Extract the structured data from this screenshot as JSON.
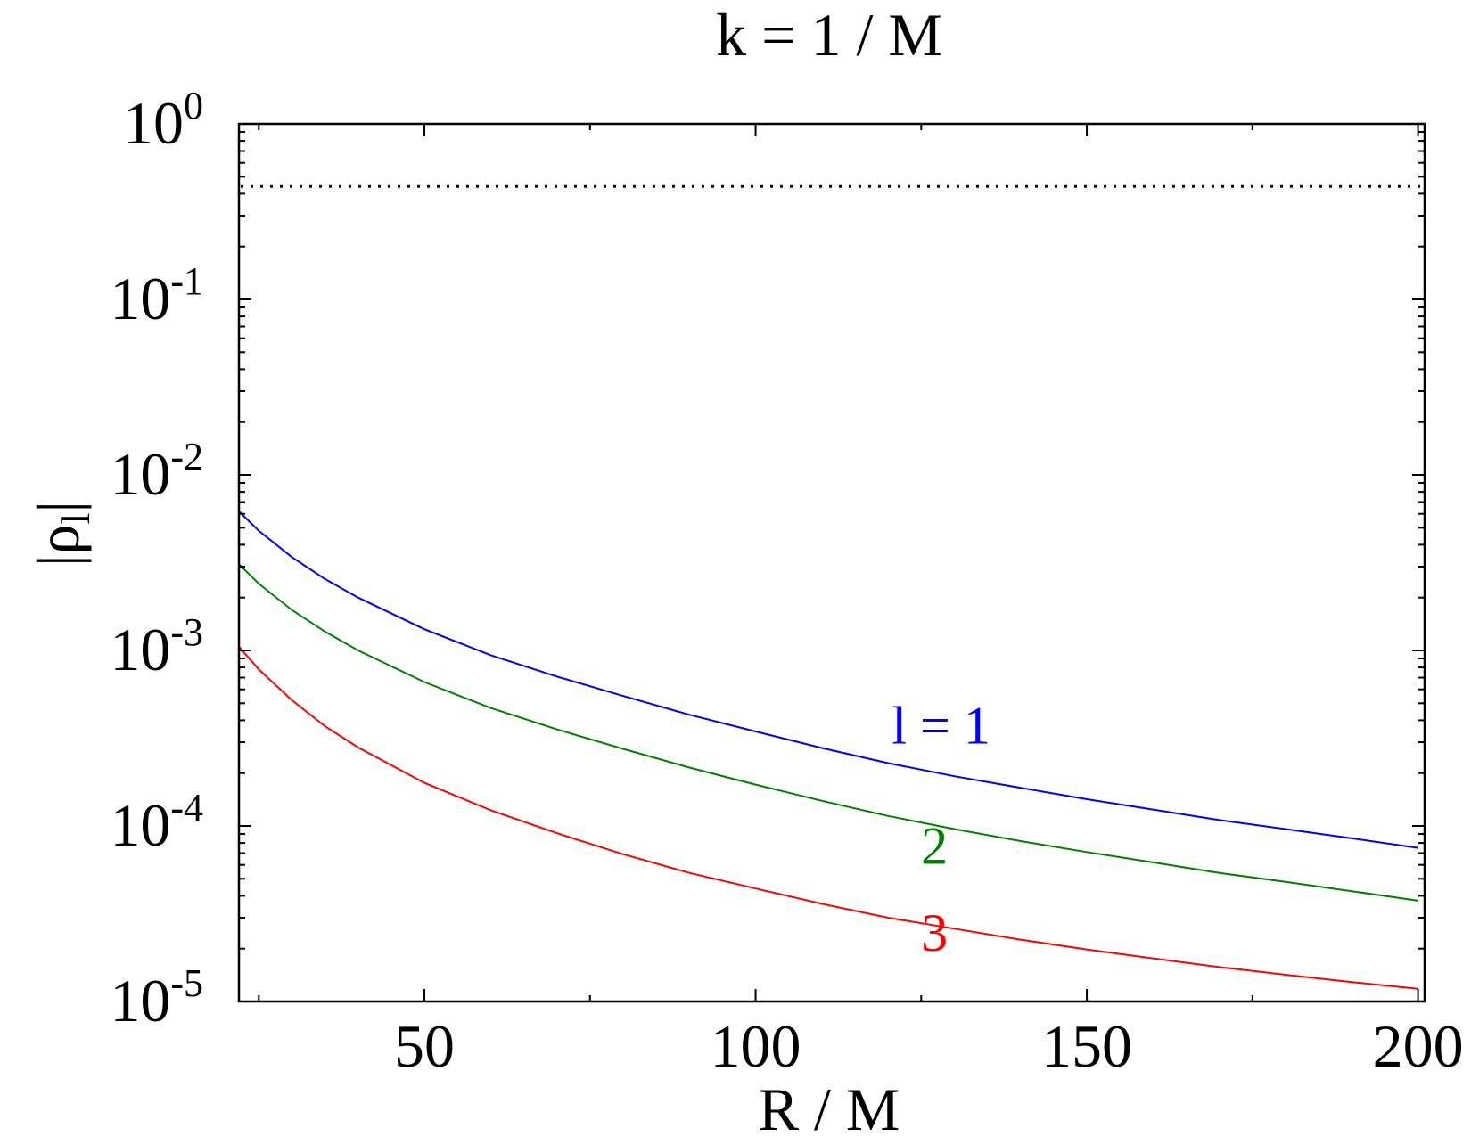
{
  "chart_data": {
    "type": "line",
    "title": "k = 1 / M",
    "xlabel": "R / M",
    "ylabel_main": "|ρ",
    "ylabel_sub": "l",
    "ylabel_close": "|",
    "xscale": "linear",
    "yscale": "log",
    "xlim": [
      22,
      201
    ],
    "ylim": [
      1e-05,
      1
    ],
    "grid": false,
    "x_ticks": [
      {
        "value": 50,
        "label": "50"
      },
      {
        "value": 100,
        "label": "100"
      },
      {
        "value": 150,
        "label": "150"
      },
      {
        "value": 200,
        "label": "200"
      }
    ],
    "y_ticks": [
      {
        "exp": 0,
        "base": "10",
        "sup": "0"
      },
      {
        "exp": -1,
        "base": "10",
        "sup": "-1"
      },
      {
        "exp": -2,
        "base": "10",
        "sup": "-2"
      },
      {
        "exp": -3,
        "base": "10",
        "sup": "-3"
      },
      {
        "exp": -4,
        "base": "10",
        "sup": "-4"
      },
      {
        "exp": -5,
        "base": "10",
        "sup": "-5"
      }
    ],
    "reference_line": {
      "y": 0.44,
      "style": "dotted",
      "color": "#000000"
    },
    "series": [
      {
        "name": "l = 1",
        "label_x": 128,
        "label_y": 0.000295,
        "color": "#0000ff",
        "x": [
          22,
          25,
          30,
          35,
          40,
          50,
          60,
          70,
          80,
          90,
          100,
          110,
          120,
          130,
          140,
          150,
          160,
          170,
          180,
          190,
          200
        ],
        "y": [
          0.0062,
          0.0048,
          0.0034,
          0.00255,
          0.002,
          0.00132,
          0.00094,
          0.00071,
          0.00055,
          0.00043,
          0.000345,
          0.000278,
          0.000228,
          0.000192,
          0.000165,
          0.000142,
          0.000124,
          0.000108,
          9.6e-05,
          8.5e-05,
          7.5e-05
        ]
      },
      {
        "name": "2",
        "label_x": 127,
        "label_y": 6.1e-05,
        "color": "#008000",
        "x": [
          22,
          25,
          30,
          35,
          40,
          50,
          60,
          70,
          80,
          90,
          100,
          110,
          120,
          130,
          140,
          150,
          160,
          170,
          180,
          190,
          200
        ],
        "y": [
          0.0031,
          0.0024,
          0.0017,
          0.00128,
          0.001,
          0.00066,
          0.00047,
          0.000355,
          0.000275,
          0.000215,
          0.000172,
          0.000139,
          0.000114,
          9.6e-05,
          8.2e-05,
          7.1e-05,
          6.2e-05,
          5.4e-05,
          4.8e-05,
          4.25e-05,
          3.75e-05
        ]
      },
      {
        "name": "3",
        "label_x": 127,
        "label_y": 1.95e-05,
        "color": "#ff0000",
        "x": [
          22,
          25,
          30,
          35,
          40,
          50,
          60,
          70,
          80,
          90,
          100,
          110,
          120,
          130,
          140,
          150,
          160,
          170,
          180,
          190,
          200
        ],
        "y": [
          0.00105,
          0.00078,
          0.00052,
          0.00037,
          0.00028,
          0.000176,
          0.000123,
          9.1e-05,
          6.9e-05,
          5.4e-05,
          4.4e-05,
          3.6e-05,
          3e-05,
          2.6e-05,
          2.25e-05,
          1.98e-05,
          1.76e-05,
          1.57e-05,
          1.42e-05,
          1.29e-05,
          1.18e-05
        ]
      }
    ]
  }
}
